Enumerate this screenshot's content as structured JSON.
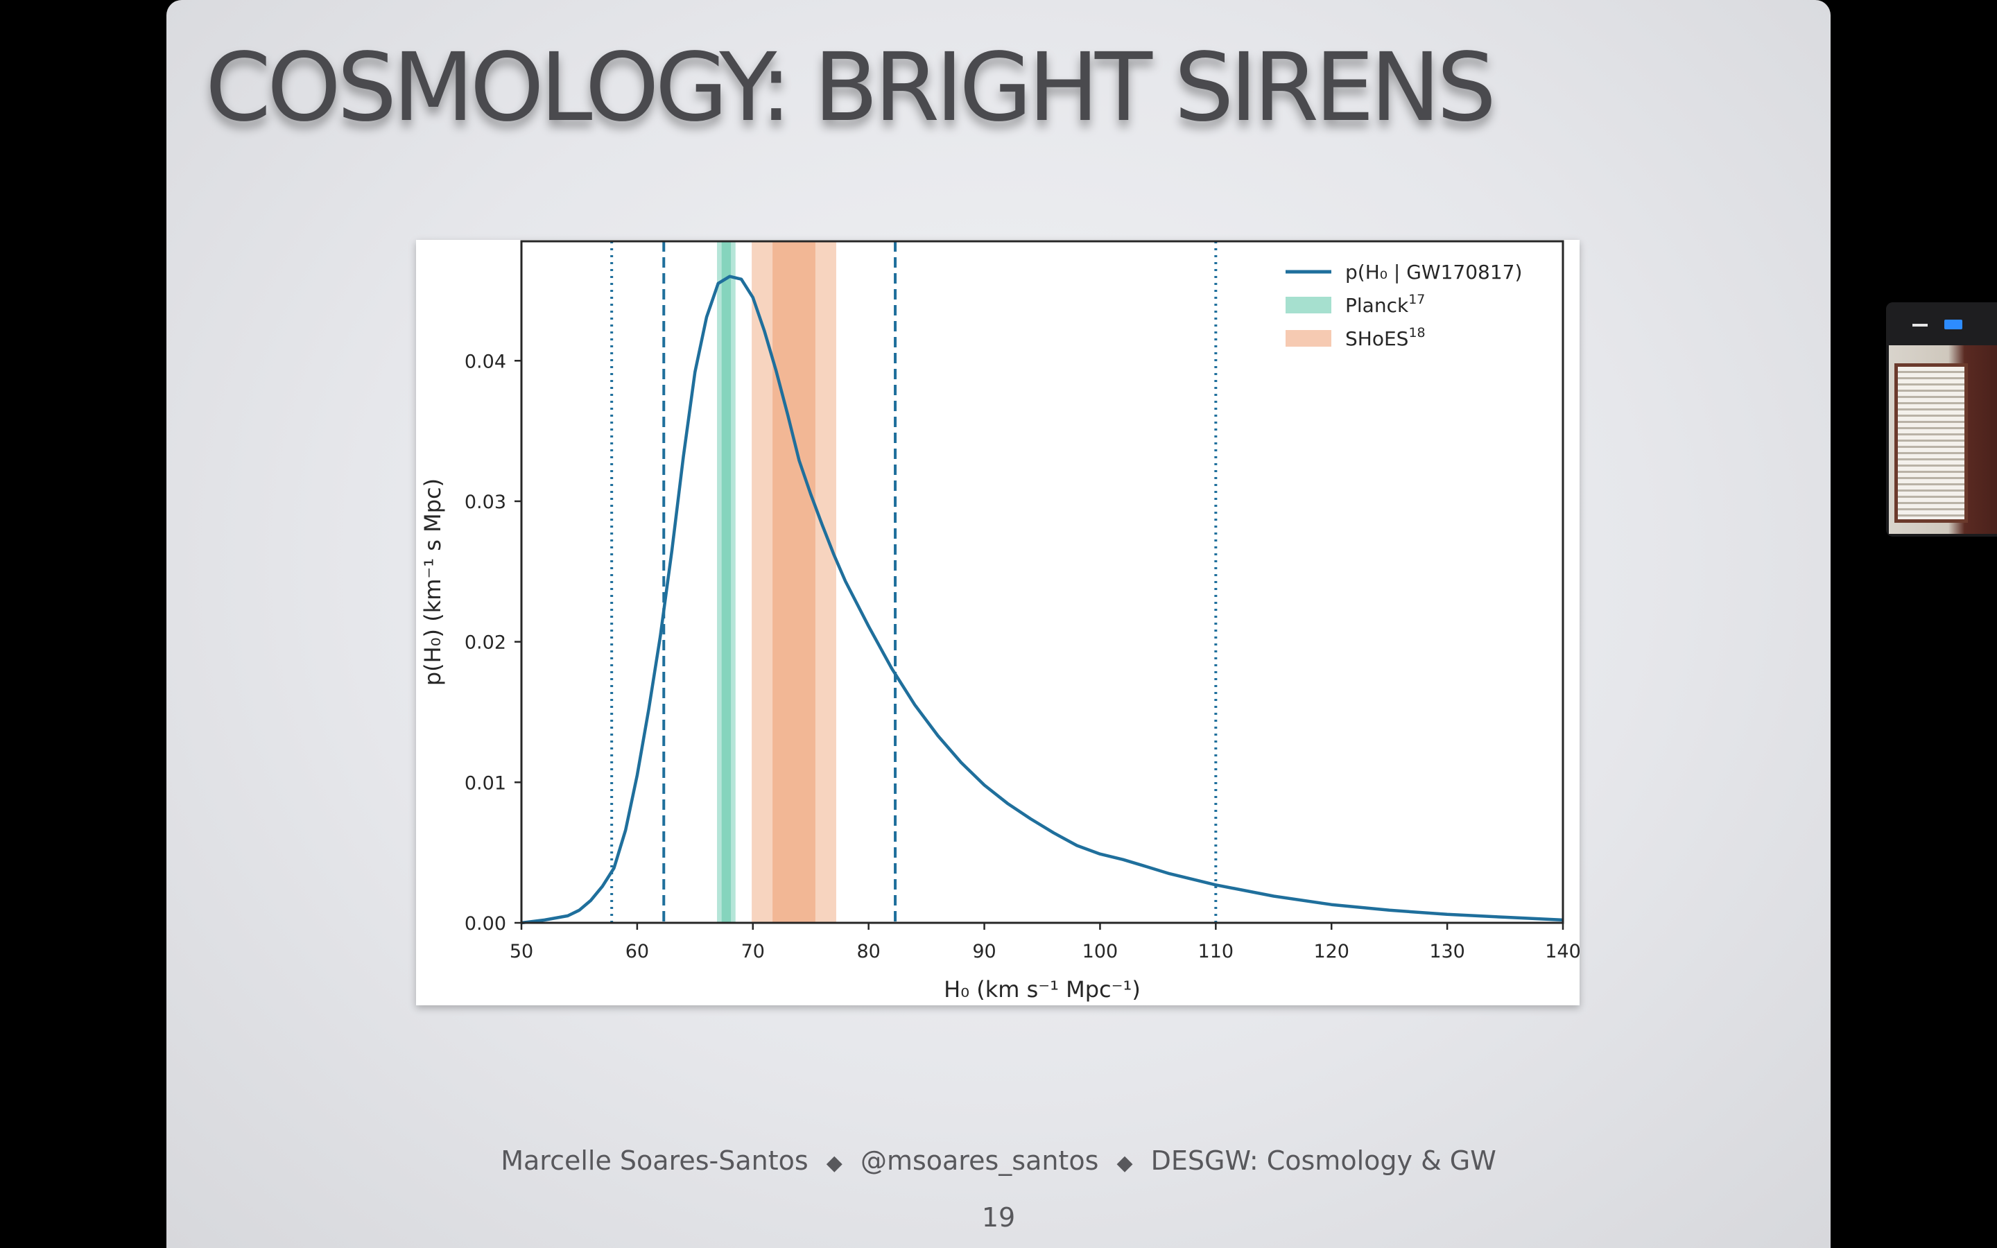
{
  "slide": {
    "title": "COSMOLOGY: BRIGHT SIRENS",
    "footer": {
      "author": "Marcelle Soares-Santos",
      "handle": "@msoares_santos",
      "event": "DESGW: Cosmology & GW",
      "separator": "◆"
    },
    "page_number": "19"
  },
  "video_overlay": {
    "controls": [
      "minimize-icon",
      "expand-icon"
    ],
    "accent_color": "#2d8cff"
  },
  "chart_data": {
    "type": "line",
    "xlabel": "H₀ (km s⁻¹ Mpc⁻¹)",
    "ylabel": "p(H₀) (km⁻¹ s Mpc)",
    "xlim": [
      50,
      140
    ],
    "ylim": [
      0,
      0.0485
    ],
    "x_ticks": [
      "50",
      "60",
      "70",
      "80",
      "90",
      "100",
      "110",
      "120",
      "130",
      "140"
    ],
    "y_ticks": [
      "0.00",
      "0.01",
      "0.02",
      "0.03",
      "0.04"
    ],
    "grid": false,
    "legend_position": "top-right",
    "series": [
      {
        "name": "p(H₀ | GW170817)",
        "color": "#1f6f9c",
        "x": [
          50,
          52,
          54,
          55,
          56,
          57,
          58,
          59,
          60,
          61,
          62,
          63,
          64,
          65,
          66,
          67,
          68,
          69,
          70,
          71,
          72,
          73,
          74,
          75,
          76,
          77,
          78,
          79,
          80,
          82,
          84,
          86,
          88,
          90,
          92,
          94,
          96,
          98,
          100,
          102,
          104,
          106,
          108,
          110,
          115,
          120,
          125,
          130,
          135,
          140
        ],
        "y": [
          0.0,
          0.0002,
          0.0005,
          0.0009,
          0.0016,
          0.0026,
          0.0039,
          0.0066,
          0.0105,
          0.0152,
          0.0204,
          0.0265,
          0.0332,
          0.0392,
          0.0431,
          0.0455,
          0.046,
          0.0458,
          0.0445,
          0.0421,
          0.0393,
          0.0362,
          0.0329,
          0.0305,
          0.0283,
          0.0262,
          0.0243,
          0.0227,
          0.0211,
          0.0181,
          0.0155,
          0.0133,
          0.0114,
          0.0098,
          0.0085,
          0.0074,
          0.0064,
          0.0055,
          0.0049,
          0.0045,
          0.004,
          0.0035,
          0.0031,
          0.0027,
          0.0019,
          0.0013,
          0.0009,
          0.0006,
          0.0004,
          0.0002
        ]
      }
    ],
    "bands": [
      {
        "name": "Planck¹⁷",
        "label_main": "Planck",
        "label_sup": "17",
        "color": "#5cc6a8",
        "center": 67.7,
        "outer": [
          66.9,
          68.5
        ],
        "inner": [
          67.3,
          68.1
        ]
      },
      {
        "name": "SHoES¹⁸",
        "label_main": "SHoES",
        "label_sup": "18",
        "color": "#ee9f72",
        "center": 73.5,
        "outer": [
          69.9,
          77.2
        ],
        "inner": [
          71.7,
          75.4
        ]
      }
    ],
    "vlines": [
      {
        "x": 57.8,
        "style": "dotted"
      },
      {
        "x": 62.3,
        "style": "dashed"
      },
      {
        "x": 82.3,
        "style": "dashed"
      },
      {
        "x": 110.0,
        "style": "dotted"
      }
    ]
  }
}
